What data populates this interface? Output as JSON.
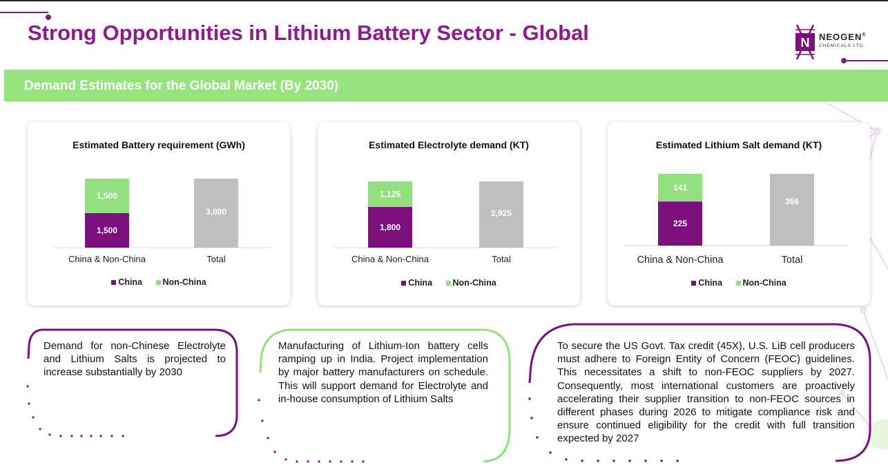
{
  "header": {
    "title": "Strong Opportunities in Lithium Battery Sector - Global",
    "logo_name": "NEOGEN",
    "logo_reg": "®",
    "logo_sub": "CHEMICALS LTD."
  },
  "section": {
    "title": "Demand Estimates for the Global Market (By 2030)"
  },
  "colors": {
    "china": "#7b0f7b",
    "non_china": "#92e07f",
    "total": "#bfbfbf",
    "title": "#8d1b8d",
    "band": "#97e37e"
  },
  "chart_data": [
    {
      "type": "bar",
      "title": "Estimated Battery requirement (GWh)",
      "categories": [
        "China & Non-China",
        "Total"
      ],
      "series": [
        {
          "name": "China",
          "values": [
            1500,
            null
          ]
        },
        {
          "name": "Non-China",
          "values": [
            1500,
            null
          ]
        },
        {
          "name": "Total",
          "values": [
            null,
            3000
          ]
        }
      ],
      "labels": {
        "china": "1,500",
        "non_china": "1,500",
        "total": "3,000"
      },
      "legend": [
        "China",
        "Non-China"
      ],
      "ylim": [
        0,
        3000
      ]
    },
    {
      "type": "bar",
      "title": "Estimated Electrolyte demand (KT)",
      "categories": [
        "China & Non-China",
        "Total"
      ],
      "series": [
        {
          "name": "China",
          "values": [
            1800,
            null
          ]
        },
        {
          "name": "Non-China",
          "values": [
            1125,
            null
          ]
        },
        {
          "name": "Total",
          "values": [
            null,
            2925
          ]
        }
      ],
      "labels": {
        "china": "1,800",
        "non_china": "1,125",
        "total": "2,925"
      },
      "legend": [
        "China",
        "Non-China"
      ],
      "ylim": [
        0,
        2925
      ]
    },
    {
      "type": "bar",
      "title": "Estimated Lithium Salt demand (KT)",
      "categories": [
        "China & Non-China",
        "Total"
      ],
      "series": [
        {
          "name": "China",
          "values": [
            225,
            null
          ]
        },
        {
          "name": "Non-China",
          "values": [
            141,
            null
          ]
        },
        {
          "name": "Total",
          "values": [
            null,
            366
          ]
        }
      ],
      "labels": {
        "china": "225",
        "non_china": "141",
        "total": "366"
      },
      "legend": [
        "China",
        "Non-China"
      ],
      "ylim": [
        0,
        366
      ]
    }
  ],
  "notes": [
    {
      "text": "Demand for non-Chinese Electrolyte and Lithium Salts is projected to increase substantially by 2030"
    },
    {
      "text": "Manufacturing of Lithium-Ion battery cells ramping up in India. Project implementation by major battery manufacturers on schedule. This will support demand for Electrolyte and in-house consumption of Lithium Salts"
    },
    {
      "text": "To secure the US Govt. Tax credit (45X), U.S. LiB cell producers must adhere to Foreign Entity of Concern (FEOC) guidelines. This necessitates a shift to non-FEOC suppliers by 2027. Consequently, most international customers are proactively accelerating their supplier transition to non-FEOC sources in different phases during 2026 to mitigate compliance risk and ensure continued eligibility for the credit with full transition expected by 2027"
    }
  ]
}
